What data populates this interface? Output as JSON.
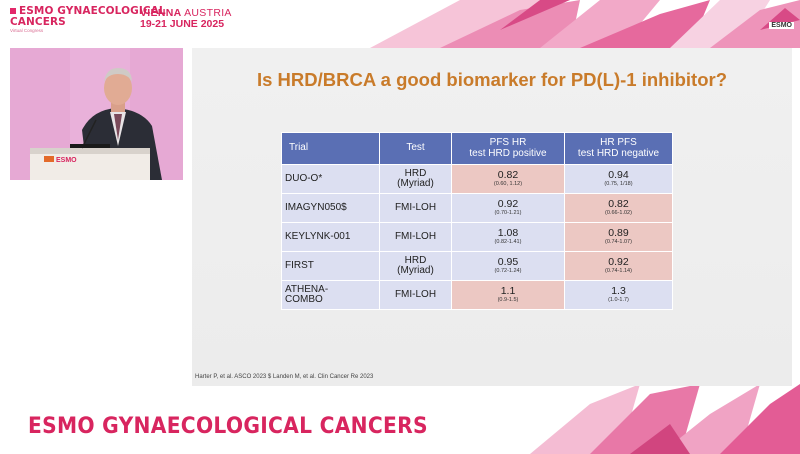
{
  "header": {
    "event_line1": "ESMO GYNAECOLOGICAL",
    "event_line2": "CANCERS",
    "event_sub": "Virtual Congress",
    "venue_city": "VIENNA",
    "venue_country": "AUSTRIA",
    "venue_dates": "19-21 JUNE 2025",
    "corner_logo": "ESMO"
  },
  "speaker_video": {
    "podium_logo": "ESMO"
  },
  "slide": {
    "title": "Is HRD/BRCA a good biomarker for PD(L)-1 inhibitor?",
    "table": {
      "headers": [
        "Trial",
        "Test",
        "PFS HR\ntest HRD positive",
        "HR PFS\ntest HRD negative"
      ],
      "rows": [
        {
          "trial": "DUO-O*",
          "test": "HRD\n(Myriad)",
          "pos_hr": "0.82",
          "pos_ci": "(0.60, 1.12)",
          "neg_hr": "0.94",
          "neg_ci": "(0.75, 1/18)",
          "highlight": "positive"
        },
        {
          "trial": "IMAGYN050$",
          "test": "FMI-LOH",
          "pos_hr": "0.92",
          "pos_ci": "(0.70-1.21)",
          "neg_hr": "0.82",
          "neg_ci": "(0.66-1.02)",
          "highlight": "negative"
        },
        {
          "trial": "KEYLYNK-001",
          "test": "FMI-LOH",
          "pos_hr": "1.08",
          "pos_ci": "(0.82-1.41)",
          "neg_hr": "0.89",
          "neg_ci": "(0.74-1.07)",
          "highlight": "negative"
        },
        {
          "trial": "FIRST",
          "test": "HRD\n(Myriad)",
          "pos_hr": "0.95",
          "pos_ci": "(0.72-1.24)",
          "neg_hr": "0.92",
          "neg_ci": "(0.74-1.14)",
          "highlight": "negative"
        },
        {
          "trial": "ATHENA-\nCOMBO",
          "test": "FMI-LOH",
          "pos_hr": "1.1",
          "pos_ci": "(0.9-1.5)",
          "neg_hr": "1.3",
          "neg_ci": "(1.0-1.7)",
          "highlight": "positive"
        }
      ]
    },
    "footnote": "Harter P, et al. ASCO 2023 $ Landen M, et al.  Clin Cancer Re 2023"
  },
  "footer": {
    "brand": "ESMO GYNAECOLOGICAL CANCERS"
  },
  "colors": {
    "brand_pink": "#d8255f",
    "title_orange": "#c97b2a",
    "header_blue": "#5a6fb4",
    "row_blue": "#dcdff1",
    "highlight_pink": "#ecc8c3"
  }
}
